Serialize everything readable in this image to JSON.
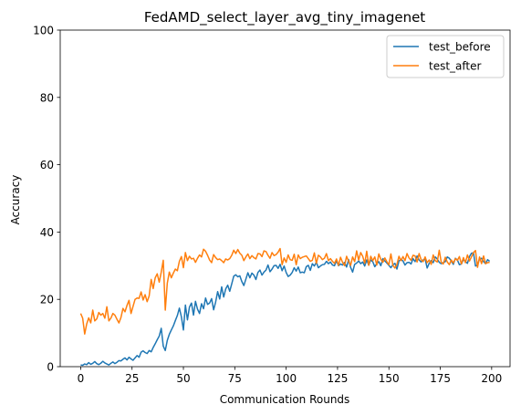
{
  "chart_data": {
    "type": "line",
    "title": "FedAMD_select_layer_avg_tiny_imagenet",
    "xlabel": "Communication Rounds",
    "ylabel": "Accuracy",
    "xlim": [
      -9.95,
      208.95
    ],
    "ylim": [
      0,
      100
    ],
    "xticks": [
      0,
      25,
      50,
      75,
      100,
      125,
      150,
      175,
      200
    ],
    "yticks": [
      0,
      20,
      40,
      60,
      80,
      100
    ],
    "grid": false,
    "legend_position": "top-right",
    "x_start": 0,
    "x_end": 199,
    "series": [
      {
        "name": "test_before",
        "color": "#1f77b4",
        "values": [
          0.5,
          0.4,
          0.8,
          0.6,
          1.2,
          0.7,
          1.0,
          1.5,
          0.9,
          0.6,
          1.0,
          1.6,
          1.1,
          0.8,
          0.5,
          1.0,
          1.4,
          0.9,
          1.3,
          1.8,
          1.7,
          2.2,
          2.6,
          2.0,
          2.8,
          2.3,
          1.9,
          2.6,
          3.3,
          2.8,
          4.3,
          4.7,
          4.2,
          3.9,
          4.8,
          4.4,
          5.7,
          6.8,
          8.0,
          9.1,
          11.4,
          6.1,
          4.8,
          7.8,
          9.6,
          10.9,
          12.1,
          13.7,
          15.2,
          17.4,
          14.8,
          10.9,
          18.3,
          13.9,
          17.7,
          18.9,
          15.3,
          19.4,
          17.1,
          15.8,
          18.7,
          17.2,
          20.4,
          18.5,
          18.9,
          20.2,
          16.9,
          19.2,
          22.3,
          20.1,
          23.7,
          20.7,
          23.1,
          24.2,
          22.4,
          24.6,
          26.9,
          27.3,
          26.7,
          27.0,
          25.3,
          24.1,
          26.0,
          27.9,
          26.4,
          27.8,
          27.2,
          25.9,
          28.0,
          28.7,
          27.2,
          28.1,
          28.7,
          30.2,
          28.2,
          29.0,
          30.0,
          30.1,
          29.2,
          30.4,
          28.5,
          29.9,
          28.0,
          26.8,
          27.2,
          28.0,
          29.4,
          28.4,
          29.6,
          27.9,
          28.1,
          27.9,
          29.7,
          30.1,
          28.6,
          30.6,
          29.9,
          31.0,
          29.4,
          29.9,
          30.3,
          30.4,
          31.3,
          30.6,
          31.1,
          30.2,
          30.0,
          31.5,
          30.0,
          30.5,
          30.2,
          31.0,
          29.6,
          31.8,
          29.5,
          28.1,
          30.4,
          30.8,
          31.4,
          30.6,
          31.1,
          29.9,
          31.7,
          30.2,
          31.7,
          31.2,
          29.7,
          30.6,
          31.2,
          30.0,
          32.1,
          31.4,
          30.8,
          30.1,
          29.4,
          30.3,
          30.7,
          29.0,
          31.4,
          31.9,
          31.4,
          30.2,
          30.9,
          31.0,
          30.5,
          32.1,
          31.2,
          32.9,
          31.7,
          31.1,
          31.7,
          32.0,
          29.3,
          30.7,
          31.5,
          30.9,
          32.6,
          32.0,
          31.0,
          30.6,
          30.9,
          31.2,
          32.6,
          32.2,
          31.4,
          30.4,
          32.2,
          31.7,
          30.3,
          30.5,
          31.9,
          31.2,
          30.7,
          32.7,
          33.7,
          33.8,
          29.9,
          30.2,
          32.0,
          32.2,
          31.2,
          30.6,
          31.8,
          31.3
        ]
      },
      {
        "name": "test_after",
        "color": "#ff7f0e",
        "values": [
          15.8,
          14.4,
          9.7,
          12.7,
          14.5,
          13.0,
          16.8,
          13.6,
          14.2,
          16.1,
          15.3,
          15.8,
          14.4,
          17.8,
          13.6,
          14.4,
          15.8,
          15.3,
          14.1,
          13.0,
          14.6,
          17.3,
          16.3,
          18.2,
          19.7,
          15.8,
          17.9,
          20.0,
          20.4,
          20.3,
          22.2,
          19.8,
          21.4,
          19.3,
          21.0,
          25.9,
          23.2,
          26.4,
          27.6,
          25.1,
          28.1,
          31.6,
          16.8,
          24.8,
          28.1,
          26.4,
          27.8,
          29.0,
          28.5,
          31.3,
          32.7,
          29.4,
          33.9,
          31.5,
          32.8,
          32.0,
          32.2,
          31.0,
          32.2,
          33.2,
          32.6,
          34.9,
          34.3,
          33.1,
          31.7,
          30.9,
          33.3,
          32.4,
          31.8,
          32.0,
          31.5,
          30.9,
          32.0,
          31.7,
          32.1,
          33.1,
          34.6,
          33.6,
          34.8,
          33.7,
          33.1,
          31.5,
          32.6,
          33.5,
          32.1,
          33.0,
          32.4,
          32.0,
          33.6,
          33.5,
          32.7,
          34.4,
          34.2,
          33.1,
          32.2,
          33.9,
          33.0,
          33.3,
          34.0,
          35.1,
          30.3,
          32.3,
          31.0,
          33.2,
          31.8,
          31.6,
          33.4,
          30.3,
          33.2,
          32.1,
          32.5,
          32.7,
          32.9,
          32.1,
          31.3,
          31.6,
          33.8,
          30.7,
          33.1,
          32.6,
          31.8,
          32.2,
          33.6,
          31.5,
          32.1,
          31.3,
          30.7,
          32.0,
          30.1,
          32.5,
          31.0,
          30.0,
          32.8,
          31.3,
          30.1,
          32.6,
          31.2,
          34.4,
          31.7,
          33.9,
          32.8,
          30.7,
          34.3,
          30.1,
          32.8,
          31.5,
          32.6,
          30.2,
          33.5,
          31.9,
          31.0,
          32.3,
          31.2,
          30.3,
          33.5,
          30.1,
          29.3,
          30.4,
          32.8,
          31.5,
          32.7,
          31.5,
          33.6,
          32.3,
          31.6,
          33.1,
          32.9,
          31.1,
          33.6,
          31.8,
          31.2,
          32.6,
          30.9,
          31.7,
          30.4,
          33.2,
          31.5,
          31.1,
          34.6,
          31.0,
          30.5,
          32.5,
          31.1,
          30.3,
          31.7,
          30.8,
          32.1,
          31.6,
          32.7,
          30.5,
          32.4,
          30.9,
          33.2,
          31.4,
          32.6,
          33.9,
          34.5,
          29.5,
          32.6,
          30.6,
          32.9,
          30.6,
          30.9,
          31.0
        ]
      }
    ]
  }
}
